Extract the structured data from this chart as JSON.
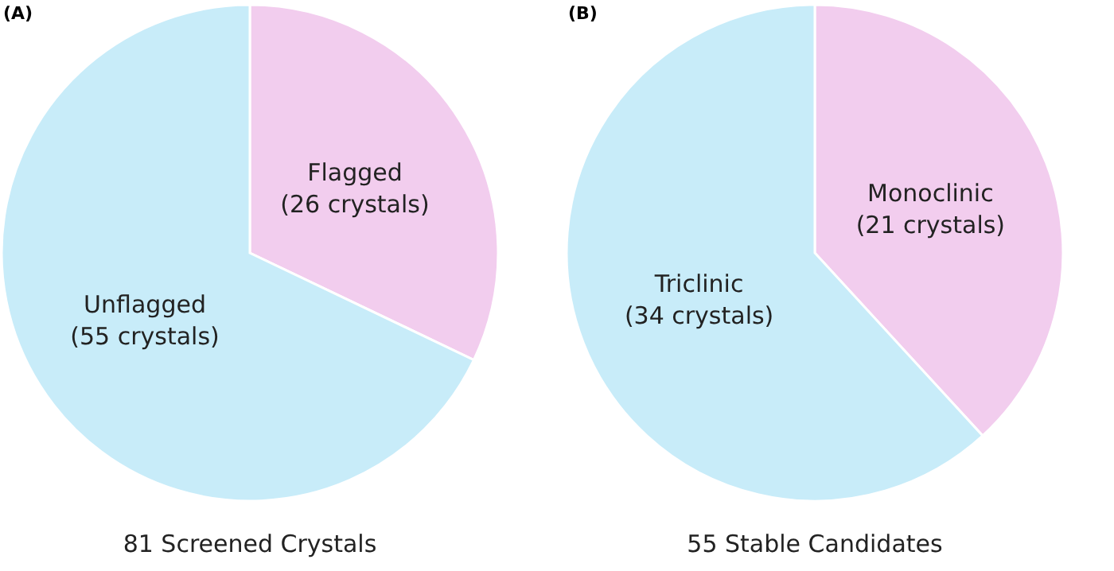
{
  "chart_data": [
    {
      "type": "pie",
      "title": "(A)",
      "categories": [
        "Flagged",
        "Unflagged"
      ],
      "values": [
        26,
        55
      ],
      "colors": [
        "#f2cdee",
        "#c8ecf9"
      ],
      "value_labels": [
        "(26 crystals)",
        "(55 crystals)"
      ],
      "annotations": [
        "81 Screened Crystals"
      ]
    },
    {
      "type": "pie",
      "title": "(B)",
      "categories": [
        "Monoclinic",
        "Triclinic"
      ],
      "values": [
        21,
        34
      ],
      "colors": [
        "#f2cdee",
        "#c8ecf9"
      ],
      "value_labels": [
        "(21 crystals)",
        "(34 crystals)"
      ],
      "annotations": [
        "55 Stable Candidates"
      ]
    }
  ]
}
